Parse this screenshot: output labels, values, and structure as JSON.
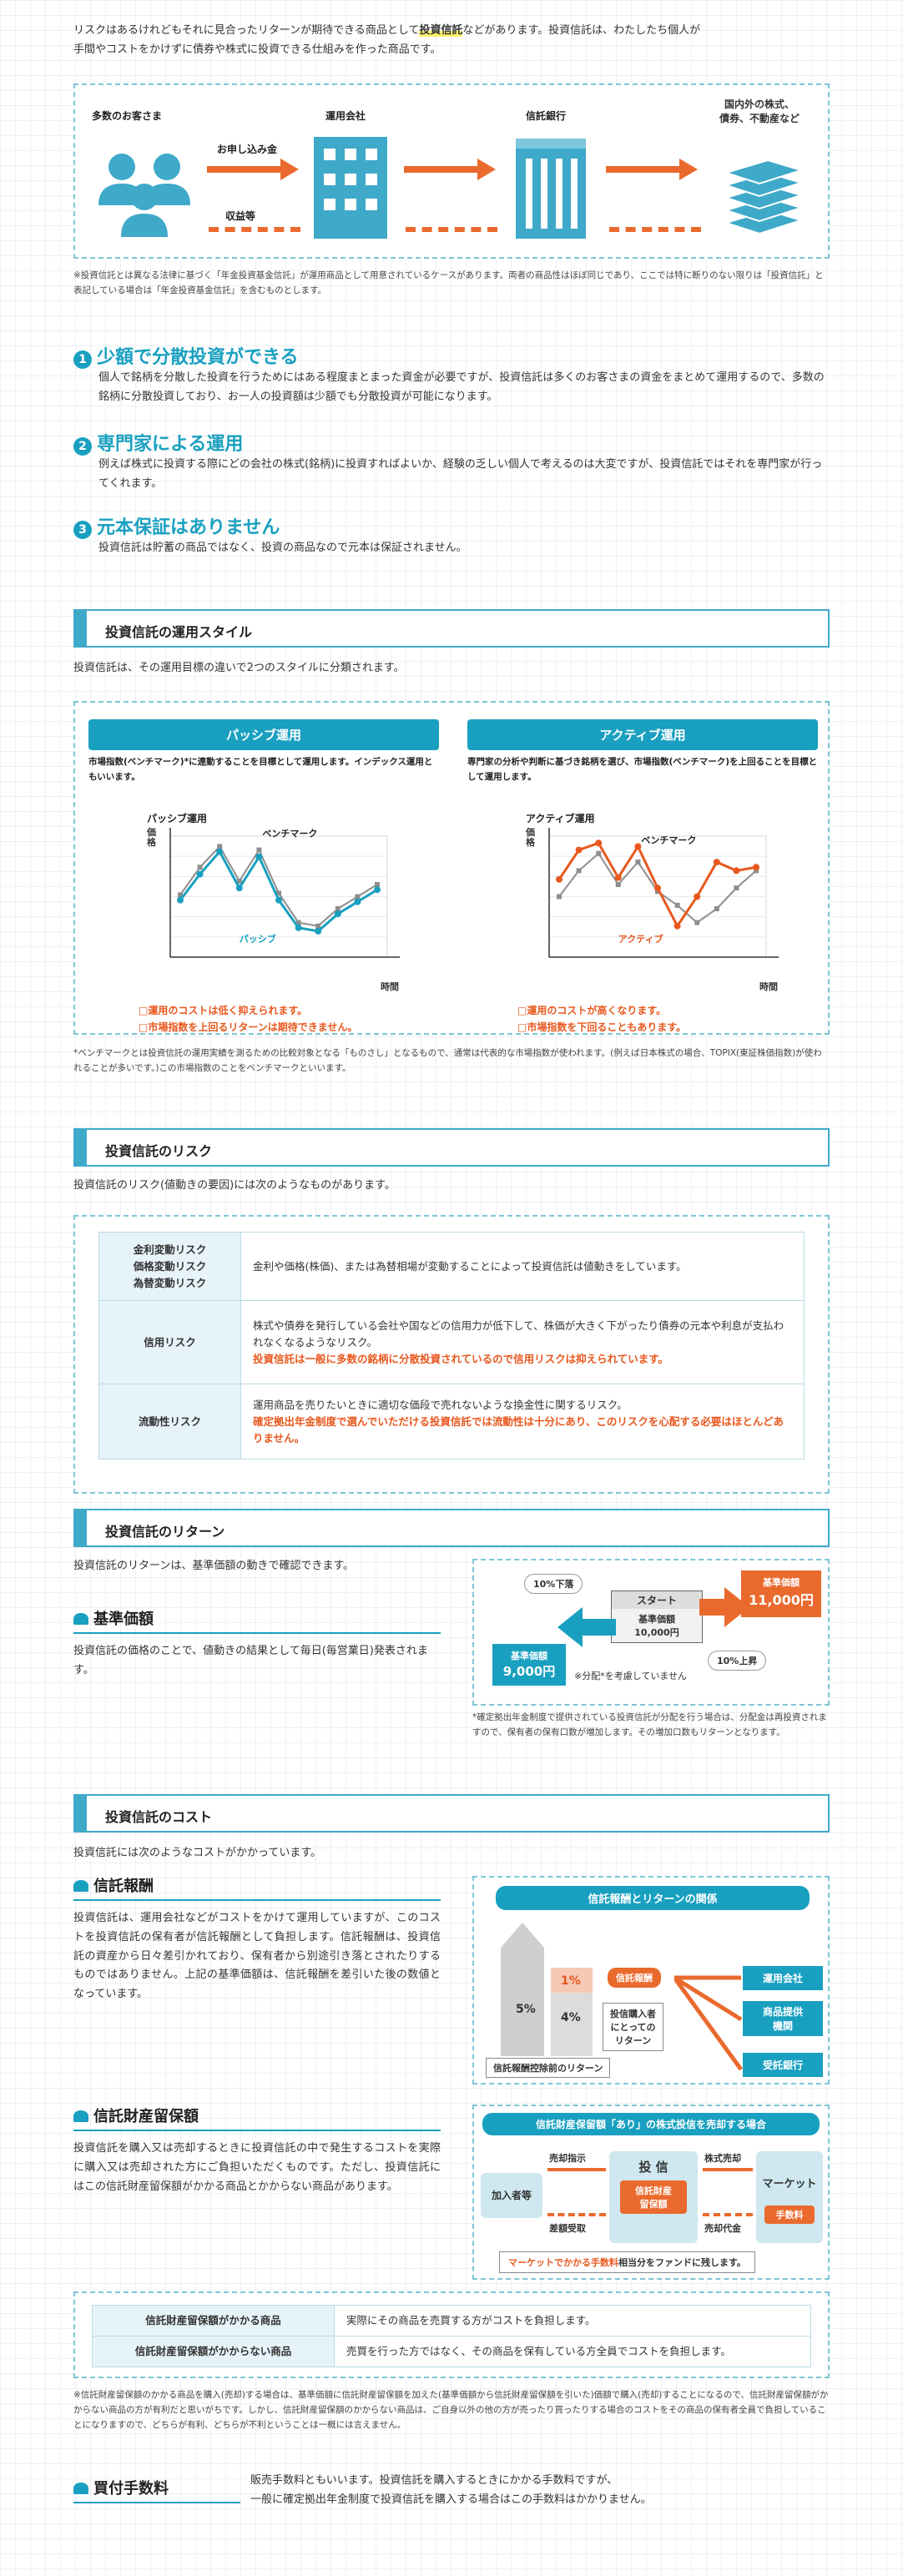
{
  "intro": {
    "line1_pre": "リスクはあるけれどもそれに見合ったリターンが期待できる商品として",
    "line1_em": "投資信託",
    "line1_post": "などがあります。投資信託は、わたしたち個人が",
    "line2": "手間やコストをかけずに債券や株式に投資できる仕組みを作った商品です。"
  },
  "flow": {
    "customers": "多数のお客さま",
    "manager": "運用会社",
    "trust_bank": "信託銀行",
    "assets": "国内外の株式、\n債券、不動産など",
    "apply": "お申し込み金",
    "returns": "収益等"
  },
  "flow_note": "※投資信託とは異なる法律に基づく「年金投資基金信託」が運用商品として用意されているケースがあります。両者の商品性はほぼ同じであり、ここでは特に断りのない限りは「投資信託」と表記している場合は「年金投資基金信託」を含むものとします。",
  "points": [
    {
      "num": "1",
      "title": "少額で分散投資ができる",
      "body": "個人で銘柄を分散した投資を行うためにはある程度まとまった資金が必要ですが、投資信託は多くのお客さまの資金をまとめて運用するので、多数の銘柄に分散投資しており、お一人の投資額は少額でも分散投資が可能になります。"
    },
    {
      "num": "2",
      "title": "専門家による運用",
      "body": "例えば株式に投資する際にどの会社の株式(銘柄)に投資すればよいか、経験の乏しい個人で考えるのは大変ですが、投資信託ではそれを専門家が行ってくれます。"
    },
    {
      "num": "3",
      "title": "元本保証はありません",
      "body": "投資信託は貯蓄の商品ではなく、投資の商品なので元本は保証されません。"
    }
  ],
  "style": {
    "heading": "投資信託の運用スタイル",
    "lead": "投資信託は、その運用目標の違いで2つのスタイルに分類されます。",
    "passive": {
      "title": "パッシブ運用",
      "desc": "市場指数(ベンチマーク)*に連動することを目標として運用します。インデックス運用ともいいます。",
      "chart_title": "パッシブ運用",
      "yaxis": "価格",
      "xaxis": "時間",
      "benchmark": "ベンチマーク",
      "fund": "パッシブ",
      "note1": "□運用のコストは低く抑えられます。",
      "note2": "□市場指数を上回るリターンは期待できません。"
    },
    "active": {
      "title": "アクティブ運用",
      "desc": "専門家の分析や判断に基づき銘柄を選び、市場指数(ベンチマーク)を上回ることを目標として運用します。",
      "chart_title": "アクティブ運用",
      "yaxis": "価格",
      "xaxis": "時間",
      "benchmark": "ベンチマーク",
      "fund": "アクティブ",
      "note1": "□運用のコストが高くなります。",
      "note2": "□市場指数を下回ることもあります。"
    },
    "footnote": "*ベンチマークとは投資信託の運用実績を測るための比較対象となる「ものさし」となるもので、通常は代表的な市場指数が使われます。(例えば日本株式の場合、TOPIX(東証株価指数)が使われることが多いです。)この市場指数のことをベンチマークといいます。"
  },
  "risk": {
    "heading": "投資信託のリスク",
    "lead": "投資信託のリスク(値動きの要因)には次のようなものがあります。",
    "rows": [
      {
        "name": "金利変動リスク\n価格変動リスク\n為替変動リスク",
        "text": "金利や価格(株価)、または為替相場が変動することによって投資信託は値動きをしています。",
        "em": ""
      },
      {
        "name": "信用リスク",
        "text": "株式や債券を発行している会社や国などの信用力が低下して、株価が大きく下がったり債券の元本や利息が支払われなくなるようなリスク。",
        "em": "投資信託は一般に多数の銘柄に分散投資されているので信用リスクは抑えられています。"
      },
      {
        "name": "流動性リスク",
        "text": "運用商品を売りたいときに適切な価段で売れないような換金性に関するリスク。",
        "em": "確定拠出年金制度で選んでいただける投資信託では流動性は十分にあり、このリスクを心配する必要はほとんどありません。"
      }
    ]
  },
  "ret": {
    "heading": "投資信託のリターン",
    "lead": "投資信託のリターンは、基準価額の動きで確認できます。",
    "sub": "基準価額",
    "body": "投資信託の価格のことで、値動きの結果として毎日(毎営業日)発表されます。",
    "start": "スタート",
    "start_label": "基準価額\n10,000円",
    "down_pct": "10%下落",
    "down_label": "基準価額",
    "down_val": "9,000円",
    "up_label": "基準価額",
    "up_val": "11,000円",
    "up_pct": "10%上昇",
    "dist": "※分配*を考慮していません",
    "note": "*確定拠出年金制度で提供されている投資信託が分配を行う場合は、分配金は再投資されますので、保有者の保有口数が増加します。その増加口数もリターンとなります。"
  },
  "cost": {
    "heading": "投資信託のコスト",
    "lead": "投資信託には次のようなコストがかかっています。",
    "fee": {
      "title": "信託報酬",
      "body": "投資信託は、運用会社などがコストをかけて運用していますが、このコストを投資信託の保有者が信託報酬として負担します。信託報酬は、投資信託の資産から日々差引かれており、保有者から別途引き落とされたりするものではありません。上記の基準価額は、信託報酬を差引いた後の数値となっています。",
      "diag_title": "信託報酬とリターンの関係",
      "p1": "1%",
      "p4": "4%",
      "p5": "5%",
      "fee_box": "信託報酬",
      "investor": "投信購入者\nにとっての\nリターン",
      "base": "信託報酬控除前のリターン",
      "r1": "運用会社",
      "r2": "商品提供\n機関",
      "r3": "受託銀行"
    },
    "reserve": {
      "title": "信託財産留保額",
      "body": "投資信託を購入又は売却するときに投資信託の中で発生するコストを実際に購入又は売却された方にご負担いただくものです。ただし、投資信託にはこの信託財産留保額がかかる商品とかからない商品があります。",
      "diag_title": "信託財産保留額「あり」の株式投信を売却する場合",
      "members": "加入者等",
      "sell": "売却指示",
      "shares_sell": "株式売却",
      "receipt": "差額受取",
      "proceeds": "売却代金",
      "fund": "投 信",
      "reserve_box": "信託財産\n留保額",
      "market": "マーケット",
      "fee": "手数料",
      "bottom_em": "マーケットでかかる手数料",
      "bottom_rest": "相当分をファンドに残します。"
    },
    "table": [
      {
        "k": "信託財産留保額がかかる商品",
        "v": "実際にその商品を売買する方がコストを負担します。"
      },
      {
        "k": "信託財産留保額がかからない商品",
        "v": "売買を行った方ではなく、その商品を保有している方全員でコストを負担します。"
      }
    ],
    "note": "※信託財産留保額のかかる商品を購入(売却)する場合は、基準価額に信託財産留保額を加えた(基準価額から信託財産留保額を引いた)価額で購入(売却)することになるので、信託財産留保額がかからない商品の方が有利だと思いがちです。しかし、信託財産留保額のかからない商品は、ご自身以外の他の方が売ったり買ったりする場合のコストをその商品の保有者全員で負担していることになりますので、どちらが有利、どちらが不利ということは一概には言えません。",
    "buy": {
      "title": "買付手数料",
      "line1": "販売手数料ともいいます。投資信託を購入するときにかかる手数料ですが、",
      "line2": "一般に確定拠出年金制度で投資信託を購入する場合はこの手数料はかかりません。"
    }
  },
  "chart_data": [
    {
      "type": "line",
      "title": "パッシブ運用",
      "xlabel": "時間",
      "ylabel": "価格",
      "x": [
        1,
        2,
        3,
        4,
        5,
        6,
        7,
        8,
        9,
        10,
        11
      ],
      "series": [
        {
          "name": "ベンチマーク",
          "values": [
            3.6,
            5.2,
            6.4,
            4.4,
            6.2,
            3.7,
            2.0,
            1.8,
            2.8,
            3.5,
            4.2
          ]
        },
        {
          "name": "パッシブ",
          "values": [
            3.3,
            4.8,
            6.1,
            4.0,
            5.8,
            3.3,
            1.7,
            1.5,
            2.5,
            3.2,
            3.9
          ]
        }
      ]
    },
    {
      "type": "line",
      "title": "アクティブ運用",
      "xlabel": "時間",
      "ylabel": "価格",
      "x": [
        1,
        2,
        3,
        4,
        5,
        6,
        7,
        8,
        9,
        10,
        11
      ],
      "series": [
        {
          "name": "ベンチマーク",
          "values": [
            3.5,
            5.0,
            6.0,
            4.2,
            5.5,
            3.8,
            3.0,
            2.0,
            2.8,
            4.0,
            5.0
          ]
        },
        {
          "name": "アクティブ",
          "values": [
            4.5,
            6.2,
            6.6,
            4.6,
            6.4,
            4.0,
            1.8,
            3.5,
            5.5,
            5.0,
            5.2
          ]
        }
      ]
    }
  ]
}
